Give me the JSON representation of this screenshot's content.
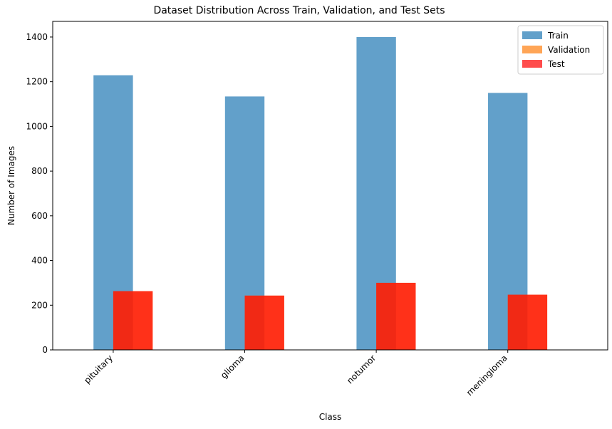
{
  "chart_data": {
    "type": "bar",
    "title": "Dataset Distribution Across Train, Validation, and Test Sets",
    "xlabel": "Class",
    "ylabel": "Number of Images",
    "categories": [
      "pituitary",
      "glioma",
      "notumor",
      "meningioma"
    ],
    "ylim": [
      0,
      1470
    ],
    "yticks": [
      0,
      200,
      400,
      600,
      800,
      1000,
      1200,
      1400
    ],
    "grid": false,
    "legend_position": "top-right",
    "series": [
      {
        "name": "Train",
        "values": [
          1229,
          1134,
          1400,
          1150
        ],
        "color": "#1f77b4",
        "alpha": 0.7
      },
      {
        "name": "Validation",
        "values": [
          263,
          243,
          300,
          247
        ],
        "color": "#ff7f0e",
        "alpha": 0.7
      },
      {
        "name": "Test",
        "values": [
          263,
          243,
          300,
          247
        ],
        "color": "#ff0000",
        "alpha": 0.7
      }
    ]
  }
}
